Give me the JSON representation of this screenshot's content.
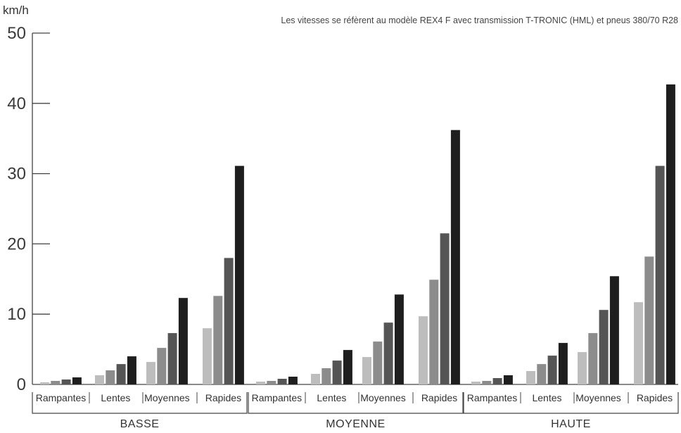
{
  "chart_data": {
    "type": "bar",
    "ylabel": "km/h",
    "ylim": [
      0,
      50
    ],
    "yticks": [
      0,
      10,
      20,
      30,
      40,
      50
    ],
    "note": "Les vitesses se réfèrent au modèle REX4 F avec transmission T-TRONIC (HML) et pneus 380/70 R28",
    "grid": false,
    "legend": "none",
    "series_colors": [
      "#bdbdbd",
      "#8c8c8c",
      "#555555",
      "#1e1e1e"
    ],
    "groups": [
      {
        "label": "BASSE",
        "categories": [
          {
            "label": "Rampantes",
            "values": [
              0.3,
              0.5,
              0.7,
              1.0
            ]
          },
          {
            "label": "Lentes",
            "values": [
              1.3,
              2.0,
              2.9,
              4.0
            ]
          },
          {
            "label": "Moyennes",
            "values": [
              3.2,
              5.2,
              7.3,
              12.3
            ]
          },
          {
            "label": "Rapides",
            "values": [
              8.0,
              12.6,
              18.0,
              31.1
            ]
          }
        ]
      },
      {
        "label": "MOYENNE",
        "categories": [
          {
            "label": "Rampantes",
            "values": [
              0.4,
              0.5,
              0.8,
              1.1
            ]
          },
          {
            "label": "Lentes",
            "values": [
              1.5,
              2.3,
              3.4,
              4.9
            ]
          },
          {
            "label": "Moyennes",
            "values": [
              3.9,
              6.1,
              8.8,
              12.8
            ]
          },
          {
            "label": "Rapides",
            "values": [
              9.7,
              14.9,
              21.5,
              36.2
            ]
          }
        ]
      },
      {
        "label": "HAUTE",
        "categories": [
          {
            "label": "Rampantes",
            "values": [
              0.4,
              0.5,
              0.9,
              1.3
            ]
          },
          {
            "label": "Lentes",
            "values": [
              1.9,
              2.9,
              4.1,
              5.9
            ]
          },
          {
            "label": "Moyennes",
            "values": [
              4.6,
              7.3,
              10.6,
              15.4
            ]
          },
          {
            "label": "Rapides",
            "values": [
              11.7,
              18.2,
              31.1,
              42.7
            ]
          }
        ]
      }
    ]
  }
}
